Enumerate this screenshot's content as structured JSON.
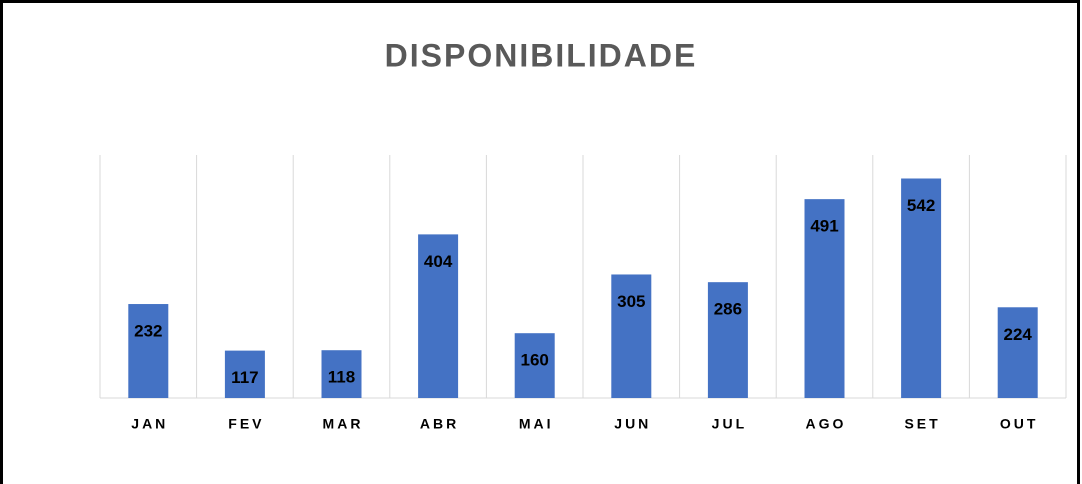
{
  "chart_data": {
    "type": "bar",
    "title": "DISPONIBILIDADE",
    "categories": [
      "JAN",
      "FEV",
      "MAR",
      "ABR",
      "MAI",
      "JUN",
      "JUL",
      "AGO",
      "SET",
      "OUT"
    ],
    "values": [
      232,
      117,
      118,
      404,
      160,
      305,
      286,
      491,
      542,
      224
    ],
    "color": "#4472c4",
    "ylim": [
      0,
      600
    ]
  }
}
